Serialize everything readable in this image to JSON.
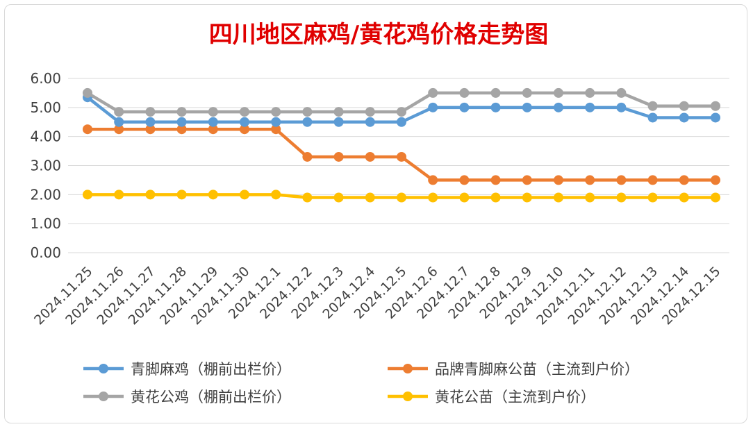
{
  "chart_data": {
    "type": "line",
    "title": "四川地区麻鸡/黄花鸡价格走势图",
    "xlabel": "",
    "ylabel": "",
    "ylim": [
      0,
      6
    ],
    "y_ticks": [
      "0.00",
      "1.00",
      "2.00",
      "3.00",
      "4.00",
      "5.00",
      "6.00"
    ],
    "grid": true,
    "legend_position": "bottom",
    "categories": [
      "2024.11.25",
      "2024.11.26",
      "2024.11.27",
      "2024.11.28",
      "2024.11.29",
      "2024.11.30",
      "2024.12.1",
      "2024.12.2",
      "2024.12.3",
      "2024.12.4",
      "2024.12.5",
      "2024.12.6",
      "2024.12.7",
      "2024.12.8",
      "2024.12.9",
      "2024.12.10",
      "2024.12.11",
      "2024.12.12",
      "2024.12.13",
      "2024.12.14",
      "2024.12.15"
    ],
    "series": [
      {
        "name": "青脚麻鸡（棚前出栏价）",
        "color": "#5b9bd5",
        "values": [
          5.35,
          4.5,
          4.5,
          4.5,
          4.5,
          4.5,
          4.5,
          4.5,
          4.5,
          4.5,
          4.5,
          5.0,
          5.0,
          5.0,
          5.0,
          5.0,
          5.0,
          5.0,
          4.65,
          4.65,
          4.65
        ]
      },
      {
        "name": "品牌青脚麻公苗（主流到户价）",
        "color": "#ed7d31",
        "values": [
          4.25,
          4.25,
          4.25,
          4.25,
          4.25,
          4.25,
          4.25,
          3.3,
          3.3,
          3.3,
          3.3,
          2.5,
          2.5,
          2.5,
          2.5,
          2.5,
          2.5,
          2.5,
          2.5,
          2.5,
          2.5
        ]
      },
      {
        "name": "黄花公鸡（棚前出栏价）",
        "color": "#a5a5a5",
        "values": [
          5.5,
          4.85,
          4.85,
          4.85,
          4.85,
          4.85,
          4.85,
          4.85,
          4.85,
          4.85,
          4.85,
          5.5,
          5.5,
          5.5,
          5.5,
          5.5,
          5.5,
          5.5,
          5.05,
          5.05,
          5.05
        ]
      },
      {
        "name": "黄花公苗（主流到户价）",
        "color": "#ffc000",
        "values": [
          2.0,
          2.0,
          2.0,
          2.0,
          2.0,
          2.0,
          2.0,
          1.9,
          1.9,
          1.9,
          1.9,
          1.9,
          1.9,
          1.9,
          1.9,
          1.9,
          1.9,
          1.9,
          1.9,
          1.9,
          1.9
        ]
      }
    ]
  }
}
